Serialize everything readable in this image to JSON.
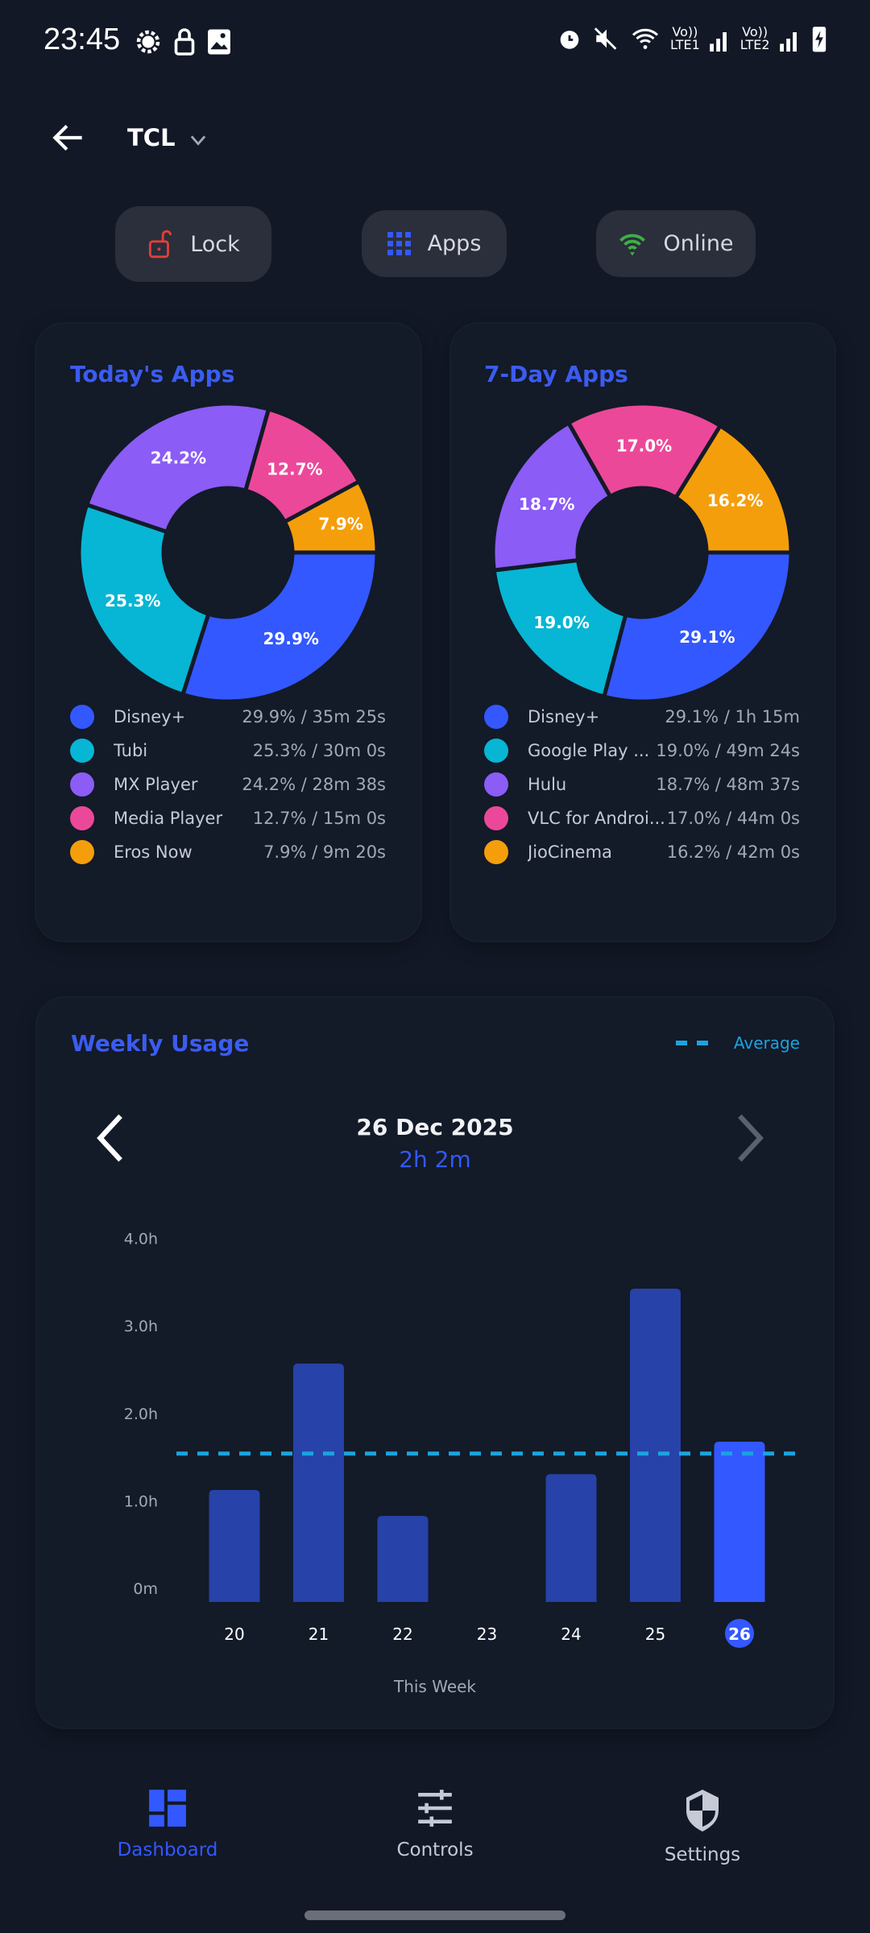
{
  "status_bar": {
    "time": "23:45",
    "icons": [
      "gear-icon",
      "lock-icon",
      "image-icon",
      "alarm-icon",
      "mute-icon",
      "wifi-icon",
      "signal-lte1-icon",
      "signal-lte2-icon",
      "battery-charging-icon"
    ],
    "lte1": "LTE1",
    "lte2": "LTE2"
  },
  "header": {
    "title": "TCL"
  },
  "actions": [
    {
      "label": "Lock",
      "icon": "unlock-icon",
      "color": "#e0403a"
    },
    {
      "label": "Apps",
      "icon": "grid-icon",
      "color": "#3358ff"
    },
    {
      "label": "Online",
      "icon": "wifi-icon",
      "color": "#3fae49"
    }
  ],
  "today": {
    "title": "Today's Apps",
    "items": [
      {
        "name": "Disney+",
        "pct": 29.9,
        "pct_label": "29.9%",
        "value": "29.9% / 35m 25s",
        "color": "#3358FF"
      },
      {
        "name": "Tubi",
        "pct": 25.3,
        "pct_label": "25.3%",
        "value": "25.3% / 30m 0s",
        "color": "#06B6D4"
      },
      {
        "name": "MX Player",
        "pct": 24.2,
        "pct_label": "24.2%",
        "value": "24.2% / 28m 38s",
        "color": "#8B5CF6"
      },
      {
        "name": "Media Player",
        "pct": 12.7,
        "pct_label": "12.7%",
        "value": "12.7% / 15m 0s",
        "color": "#EC4899"
      },
      {
        "name": "Eros Now",
        "pct": 7.9,
        "pct_label": "7.9%",
        "value": "7.9% / 9m 20s",
        "color": "#F59E0B"
      }
    ]
  },
  "week_apps": {
    "title": "7-Day Apps",
    "items": [
      {
        "name": "Disney+",
        "pct": 29.1,
        "pct_label": "29.1%",
        "value": "29.1% / 1h 15m",
        "color": "#3358FF"
      },
      {
        "name": "Google Play ...",
        "pct": 19.0,
        "pct_label": "19.0%",
        "value": "19.0% / 49m 24s",
        "color": "#06B6D4"
      },
      {
        "name": "Hulu",
        "pct": 18.7,
        "pct_label": "18.7%",
        "value": "18.7% / 48m 37s",
        "color": "#8B5CF6"
      },
      {
        "name": "VLC for Androi...",
        "pct": 17.0,
        "pct_label": "17.0%",
        "value": "17.0% / 44m 0s",
        "color": "#EC4899"
      },
      {
        "name": "JioCinema",
        "pct": 16.2,
        "pct_label": "16.2%",
        "value": "16.2% / 42m 0s",
        "color": "#F59E0B"
      }
    ]
  },
  "weekly": {
    "title": "Weekly Usage",
    "legend": "Average",
    "date": "26 Dec 2025",
    "total": "2h 2m"
  },
  "chart_data": {
    "type": "bar",
    "categories": [
      "20",
      "21",
      "22",
      "23",
      "24",
      "25",
      "26"
    ],
    "values": [
      1.42,
      3.02,
      1.09,
      0,
      1.62,
      3.97,
      2.03
    ],
    "unit": "h",
    "selected": "26",
    "average": 1.88,
    "yticks": [
      "0m",
      "1.0h",
      "2.0h",
      "3.0h",
      "4.0h"
    ],
    "xlabel": "This Week",
    "bar_color": "#2742A8",
    "selected_color": "#3358FF",
    "average_color": "#1BA3E0"
  },
  "nav": [
    {
      "label": "Dashboard",
      "icon": "dashboard-icon",
      "active": true
    },
    {
      "label": "Controls",
      "icon": "sliders-icon",
      "active": false
    },
    {
      "label": "Settings",
      "icon": "shield-icon",
      "active": false
    }
  ]
}
